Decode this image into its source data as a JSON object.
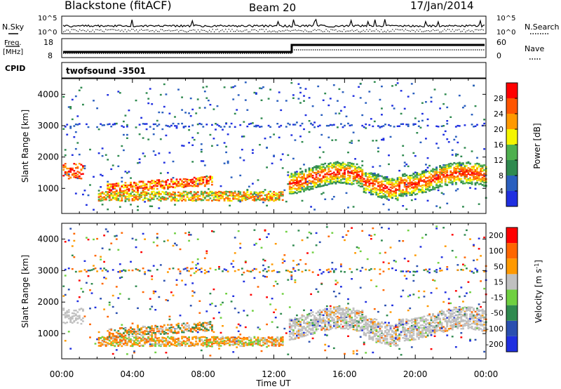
{
  "header": {
    "station": "Blackstone (fitACF)",
    "beam": "Beam 20",
    "date": "17/Jan/2014"
  },
  "noise_panel": {
    "left_label": "N.Sky",
    "right_label": "N.Search",
    "y_ticks_left": [
      "10^5",
      "10^0"
    ],
    "y_ticks_right": [
      "10^5",
      "10^0"
    ]
  },
  "freq_panel": {
    "left_label_1": "Freq.",
    "left_label_2": "[MHz]",
    "right_label": "Nave",
    "y_ticks_left": [
      "18",
      "8"
    ],
    "y_ticks_right": [
      "60",
      "0"
    ]
  },
  "cpid": {
    "label": "CPID",
    "value": "twofsound -3501"
  },
  "colors": {
    "power_scale": [
      "#1f2fe0",
      "#2a5fbf",
      "#2f8a4f",
      "#4fb04f",
      "#f5f500",
      "#ff9900",
      "#ff5500",
      "#ff0000"
    ],
    "velocity_scale": [
      "#1f2fe0",
      "#2a4fb0",
      "#2f8a4f",
      "#6fd040",
      "#c0c0c0",
      "#ff9900",
      "#ff6600",
      "#ff0000"
    ]
  },
  "chart_data": [
    {
      "type": "heatmap",
      "name": "power",
      "ylabel": "Slant Range [km]",
      "yticks": [
        "1000",
        "2000",
        "3000",
        "4000"
      ],
      "ylim": [
        200,
        4500
      ],
      "xlim_hours": [
        0,
        24
      ],
      "colorbar_label": "Power [dB]",
      "colorbar_ticks": [
        "4",
        "8",
        "12",
        "16",
        "20",
        "24",
        "28"
      ],
      "clim": [
        0,
        30
      ]
    },
    {
      "type": "heatmap",
      "name": "velocity",
      "ylabel": "Slant Range [km]",
      "yticks": [
        "1000",
        "2000",
        "3000",
        "4000"
      ],
      "ylim": [
        200,
        4500
      ],
      "xlim_hours": [
        0,
        24
      ],
      "xlabel": "Time UT",
      "xticks": [
        "00:00",
        "04:00",
        "08:00",
        "12:00",
        "16:00",
        "20:00",
        "00:00"
      ],
      "colorbar_label_main": "Velocity [m s",
      "colorbar_label_sup": "-1",
      "colorbar_label_end": "]",
      "colorbar_ticks": [
        "200",
        "100",
        "50",
        "15",
        "-15",
        "-50",
        "-100",
        "-200"
      ],
      "clim": [
        -250,
        250
      ]
    }
  ]
}
